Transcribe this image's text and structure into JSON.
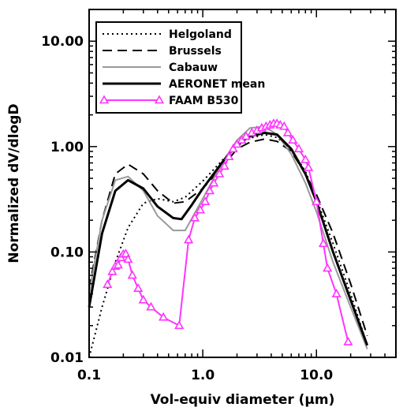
{
  "chart_data": {
    "type": "line",
    "xlabel": "Vol-equiv diameter (μm)",
    "ylabel": "Normalized dV/dlogD",
    "x_scale": "log",
    "y_scale": "log",
    "xlim": [
      0.1,
      50
    ],
    "ylim": [
      0.01,
      20
    ],
    "x_ticks": [
      {
        "value": 0.1,
        "label": "0.1"
      },
      {
        "value": 1.0,
        "label": "1.0"
      },
      {
        "value": 10.0,
        "label": "10.0"
      }
    ],
    "y_ticks": [
      {
        "value": 0.01,
        "label": "0.01"
      },
      {
        "value": 0.1,
        "label": "0.10"
      },
      {
        "value": 1.0,
        "label": "1.00"
      },
      {
        "value": 10.0,
        "label": "10.00"
      }
    ],
    "grid": false,
    "legend_position": "top-left",
    "series": [
      {
        "name": "Helgoland",
        "style": "dotted",
        "color": "#000000",
        "points": [
          [
            0.1,
            0.009
          ],
          [
            0.13,
            0.03
          ],
          [
            0.17,
            0.08
          ],
          [
            0.22,
            0.17
          ],
          [
            0.3,
            0.29
          ],
          [
            0.4,
            0.32
          ],
          [
            0.55,
            0.3
          ],
          [
            0.7,
            0.33
          ],
          [
            1.0,
            0.47
          ],
          [
            1.5,
            0.75
          ],
          [
            2.0,
            1.02
          ],
          [
            2.6,
            1.2
          ],
          [
            3.5,
            1.3
          ],
          [
            4.5,
            1.22
          ],
          [
            6.0,
            0.95
          ],
          [
            8.0,
            0.58
          ],
          [
            10.0,
            0.32
          ],
          [
            14.0,
            0.12
          ],
          [
            20.0,
            0.04
          ],
          [
            28.0,
            0.013
          ]
        ]
      },
      {
        "name": "Brussels",
        "style": "dashed",
        "color": "#000000",
        "points": [
          [
            0.1,
            0.045
          ],
          [
            0.13,
            0.2
          ],
          [
            0.17,
            0.55
          ],
          [
            0.22,
            0.68
          ],
          [
            0.3,
            0.55
          ],
          [
            0.4,
            0.38
          ],
          [
            0.55,
            0.29
          ],
          [
            0.7,
            0.3
          ],
          [
            1.0,
            0.4
          ],
          [
            1.5,
            0.65
          ],
          [
            2.0,
            0.95
          ],
          [
            2.6,
            1.1
          ],
          [
            3.5,
            1.18
          ],
          [
            4.5,
            1.12
          ],
          [
            6.0,
            0.9
          ],
          [
            8.0,
            0.55
          ],
          [
            10.0,
            0.35
          ],
          [
            14.0,
            0.15
          ],
          [
            20.0,
            0.05
          ],
          [
            28.0,
            0.016
          ]
        ]
      },
      {
        "name": "Cabauw",
        "style": "solid",
        "color": "#999999",
        "points": [
          [
            0.1,
            0.04
          ],
          [
            0.13,
            0.2
          ],
          [
            0.17,
            0.48
          ],
          [
            0.22,
            0.52
          ],
          [
            0.3,
            0.38
          ],
          [
            0.4,
            0.22
          ],
          [
            0.55,
            0.16
          ],
          [
            0.7,
            0.16
          ],
          [
            1.0,
            0.32
          ],
          [
            1.5,
            0.72
          ],
          [
            2.0,
            1.15
          ],
          [
            2.6,
            1.5
          ],
          [
            3.5,
            1.55
          ],
          [
            4.5,
            1.3
          ],
          [
            6.0,
            0.85
          ],
          [
            8.0,
            0.45
          ],
          [
            10.0,
            0.24
          ],
          [
            14.0,
            0.08
          ],
          [
            20.0,
            0.03
          ],
          [
            28.0,
            0.012
          ]
        ]
      },
      {
        "name": "AERONET mean",
        "style": "solid",
        "color": "#000000",
        "points": [
          [
            0.1,
            0.03
          ],
          [
            0.13,
            0.15
          ],
          [
            0.17,
            0.38
          ],
          [
            0.22,
            0.48
          ],
          [
            0.3,
            0.4
          ],
          [
            0.4,
            0.27
          ],
          [
            0.55,
            0.21
          ],
          [
            0.65,
            0.205
          ],
          [
            0.8,
            0.28
          ],
          [
            1.0,
            0.4
          ],
          [
            1.5,
            0.72
          ],
          [
            2.0,
            1.05
          ],
          [
            2.6,
            1.25
          ],
          [
            3.5,
            1.35
          ],
          [
            4.5,
            1.3
          ],
          [
            6.0,
            0.95
          ],
          [
            8.0,
            0.55
          ],
          [
            10.0,
            0.3
          ],
          [
            14.0,
            0.1
          ],
          [
            20.0,
            0.035
          ],
          [
            28.0,
            0.013
          ]
        ]
      },
      {
        "name": "FAAM B530",
        "style": "solid",
        "color": "#ff33ff",
        "marker": "triangle",
        "points": [
          [
            0.145,
            0.049
          ],
          [
            0.16,
            0.065
          ],
          [
            0.17,
            0.073
          ],
          [
            0.18,
            0.075
          ],
          [
            0.19,
            0.088
          ],
          [
            0.2,
            0.095
          ],
          [
            0.21,
            0.096
          ],
          [
            0.22,
            0.085
          ],
          [
            0.24,
            0.06
          ],
          [
            0.27,
            0.045
          ],
          [
            0.3,
            0.035
          ],
          [
            0.35,
            0.03
          ],
          [
            0.45,
            0.024
          ],
          [
            0.62,
            0.02
          ],
          [
            0.75,
            0.13
          ],
          [
            0.85,
            0.21
          ],
          [
            0.95,
            0.25
          ],
          [
            1.05,
            0.3
          ],
          [
            1.15,
            0.38
          ],
          [
            1.25,
            0.45
          ],
          [
            1.4,
            0.55
          ],
          [
            1.55,
            0.65
          ],
          [
            1.7,
            0.8
          ],
          [
            1.85,
            0.95
          ],
          [
            2.0,
            1.05
          ],
          [
            2.2,
            1.15
          ],
          [
            2.4,
            1.25
          ],
          [
            2.7,
            1.35
          ],
          [
            3.0,
            1.42
          ],
          [
            3.3,
            1.5
          ],
          [
            3.6,
            1.55
          ],
          [
            3.9,
            1.6
          ],
          [
            4.2,
            1.65
          ],
          [
            4.5,
            1.65
          ],
          [
            4.8,
            1.6
          ],
          [
            5.2,
            1.55
          ],
          [
            5.6,
            1.35
          ],
          [
            6.2,
            1.15
          ],
          [
            7.0,
            0.95
          ],
          [
            8.0,
            0.75
          ],
          [
            8.5,
            0.63
          ],
          [
            10.0,
            0.3
          ],
          [
            11.5,
            0.12
          ],
          [
            12.5,
            0.07
          ],
          [
            15.0,
            0.04
          ],
          [
            19.0,
            0.014
          ]
        ]
      }
    ]
  }
}
